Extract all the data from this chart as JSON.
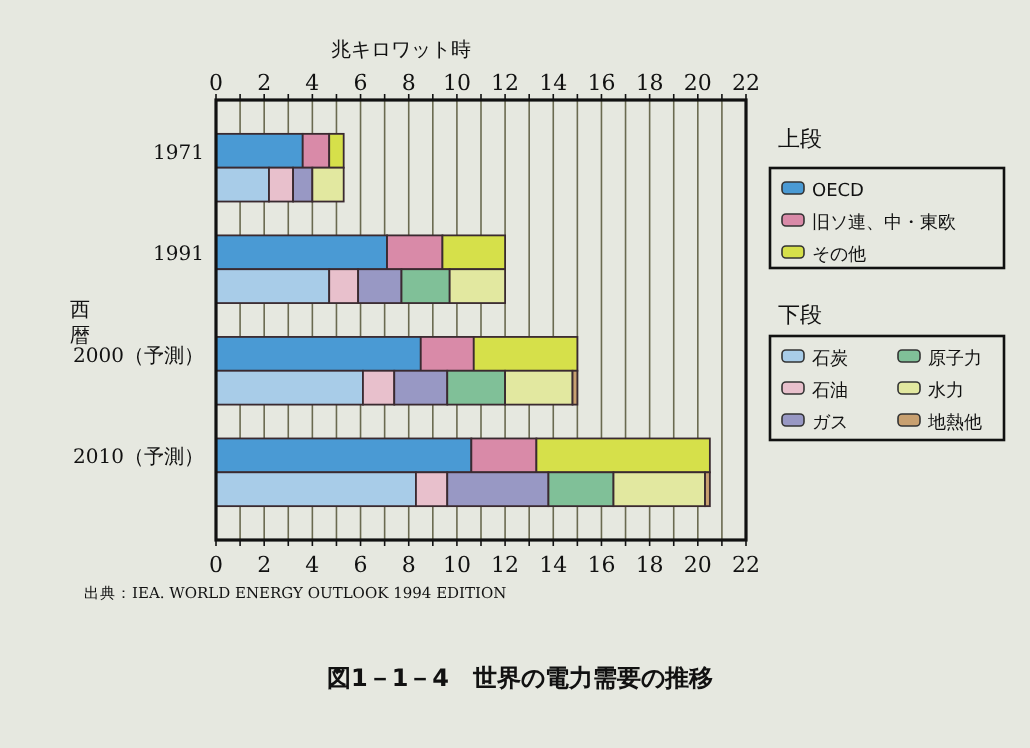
{
  "chart_data": {
    "type": "bar",
    "orientation": "horizontal",
    "stacked": true,
    "title": "図1－1－4　世界の電力需要の推移",
    "x2label": "兆キロワット時",
    "ylabel": "西暦",
    "legend_title": "上段",
    "annotations": [
      "下段",
      "出典：IEA. WORLD ENERGY OUTLOOK 1994 EDITION"
    ],
    "categories": [
      null,
      "1971",
      null,
      null,
      "1991",
      null,
      null,
      "2000（予測）",
      null,
      null,
      "2010（予測）",
      null,
      null
    ],
    "series": [
      {
        "name": "OECD",
        "color": "#4a9ad4",
        "values": [
          null,
          3.6,
          null,
          null,
          7.1,
          null,
          null,
          8.5,
          null,
          null,
          10.6,
          null,
          null
        ]
      },
      {
        "name": "旧ソ連、中・東欧",
        "color": "#d98aa8",
        "values": [
          null,
          1.1,
          null,
          null,
          2.3,
          null,
          null,
          2.2,
          null,
          null,
          2.7,
          null,
          null
        ]
      },
      {
        "name": "その他",
        "color": "#d6e04a",
        "values": [
          null,
          0.6,
          null,
          null,
          2.6,
          null,
          null,
          4.3,
          null,
          null,
          7.2,
          null,
          null
        ]
      },
      {
        "name": "石炭",
        "color": "#a8cce8",
        "values": [
          null,
          null,
          2.2,
          null,
          null,
          4.7,
          null,
          null,
          6.1,
          null,
          null,
          8.3,
          null
        ]
      },
      {
        "name": "石油",
        "color": "#e8c0cc",
        "values": [
          null,
          null,
          1.0,
          null,
          null,
          1.2,
          null,
          null,
          1.3,
          null,
          null,
          1.3,
          null
        ]
      },
      {
        "name": "ガス",
        "color": "#9898c4",
        "values": [
          null,
          null,
          0.8,
          null,
          null,
          1.8,
          null,
          null,
          2.2,
          null,
          null,
          4.2,
          null
        ]
      },
      {
        "name": "原子力",
        "color": "#80c098",
        "values": [
          null,
          null,
          0,
          null,
          null,
          2.0,
          null,
          null,
          2.4,
          null,
          null,
          2.7,
          null
        ]
      },
      {
        "name": "水力",
        "color": "#e2e8a0",
        "values": [
          null,
          null,
          1.3,
          null,
          null,
          2.3,
          null,
          null,
          2.8,
          null,
          null,
          3.8,
          null
        ]
      },
      {
        "name": "地熱他",
        "color": "#c8a070",
        "values": [
          null,
          null,
          0,
          null,
          null,
          0,
          null,
          null,
          0.2,
          null,
          null,
          0.2,
          null
        ]
      }
    ],
    "xlim": [
      0,
      22
    ],
    "xticks": [
      0,
      {
        "value": 1,
        "label": null
      },
      2,
      {
        "value": 3,
        "label": null
      },
      4,
      {
        "value": 5,
        "label": null
      },
      6,
      {
        "value": 7,
        "label": null
      },
      8,
      {
        "value": 9,
        "label": null
      },
      10,
      {
        "value": 11,
        "label": null
      },
      12,
      {
        "value": 13,
        "label": null
      },
      14,
      {
        "value": 15,
        "label": null
      },
      16,
      {
        "value": 17,
        "label": null
      },
      18,
      {
        "value": 19,
        "label": null
      },
      20,
      {
        "value": 21,
        "label": null
      },
      22
    ],
    "x2lim": [
      0,
      22
    ],
    "x2ticks": [
      0,
      {
        "value": 1,
        "label": null
      },
      2,
      {
        "value": 3,
        "label": null
      },
      4,
      {
        "value": 5,
        "label": null
      },
      6,
      {
        "value": 7,
        "label": null
      },
      8,
      {
        "value": 9,
        "label": null
      },
      10,
      {
        "value": 11,
        "label": null
      },
      12,
      {
        "value": 13,
        "label": null
      },
      14,
      {
        "value": 15,
        "label": null
      },
      16,
      {
        "value": 17,
        "label": null
      },
      18,
      {
        "value": 19,
        "label": null
      },
      20,
      {
        "value": 21,
        "label": null
      },
      22
    ],
    "grid": "x",
    "legend": "right"
  }
}
